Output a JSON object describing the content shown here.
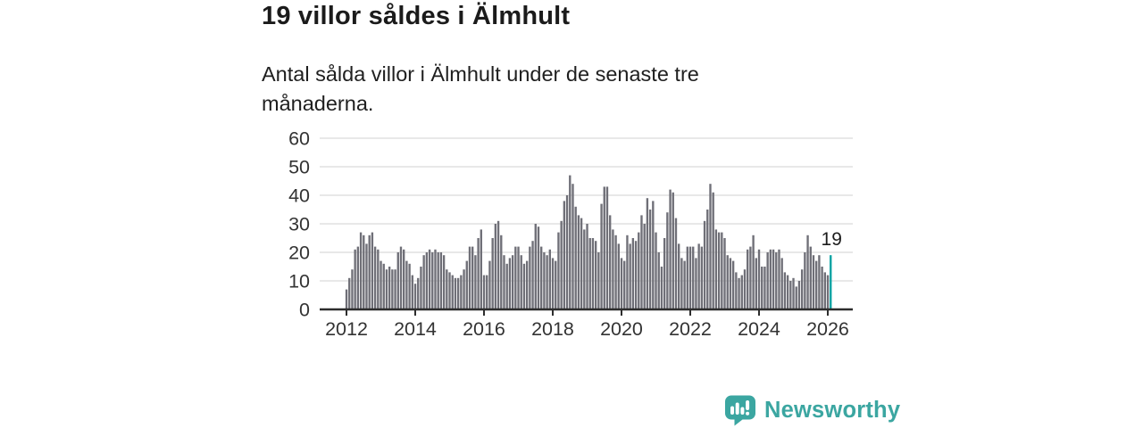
{
  "header": {
    "title": "19 villor såldes i Älmhult",
    "subtitle": "Antal sålda villor i Älmhult under de senaste tre månaderna."
  },
  "chart_data": {
    "type": "bar",
    "title": "19 villor såldes i Älmhult",
    "subtitle": "Antal sålda villor i Älmhult under de senaste tre månaderna.",
    "frequency": "monthly",
    "x_start": "2012-01",
    "x_end": "2026-02",
    "start_year": 2012,
    "values": [
      7,
      11,
      14,
      21,
      22,
      27,
      26,
      23,
      26,
      27,
      22,
      21,
      17,
      16,
      14,
      15,
      14,
      14,
      20,
      22,
      21,
      17,
      16,
      12,
      9,
      11,
      15,
      19,
      20,
      21,
      20,
      21,
      20,
      20,
      19,
      14,
      13,
      12,
      11,
      11,
      12,
      14,
      17,
      22,
      22,
      19,
      25,
      28,
      12,
      12,
      17,
      25,
      30,
      31,
      26,
      19,
      16,
      18,
      19,
      22,
      22,
      19,
      16,
      17,
      22,
      24,
      30,
      29,
      22,
      20,
      19,
      21,
      18,
      17,
      27,
      31,
      38,
      40,
      47,
      44,
      36,
      33,
      32,
      28,
      30,
      25,
      25,
      24,
      20,
      37,
      43,
      43,
      33,
      28,
      26,
      23,
      18,
      17,
      26,
      23,
      25,
      24,
      27,
      33,
      30,
      39,
      35,
      38,
      27,
      20,
      15,
      25,
      34,
      42,
      41,
      32,
      23,
      18,
      17,
      22,
      22,
      22,
      18,
      23,
      22,
      31,
      35,
      44,
      41,
      28,
      27,
      27,
      25,
      19,
      18,
      17,
      13,
      11,
      12,
      14,
      21,
      22,
      26,
      18,
      21,
      15,
      15,
      20,
      21,
      21,
      20,
      21,
      18,
      13,
      12,
      10,
      11,
      8,
      10,
      14,
      20,
      26,
      22,
      19,
      17,
      19,
      15,
      13,
      12,
      19
    ],
    "highlight": {
      "index": 169,
      "value": 19,
      "label": "19",
      "color": "#00a2a2"
    },
    "ylim": [
      0,
      60
    ],
    "yticks": [
      0,
      10,
      20,
      30,
      40,
      50,
      60
    ],
    "xtick_labels": [
      "2012",
      "2014",
      "2016",
      "2018",
      "2020",
      "2022",
      "2024",
      "2026"
    ],
    "grid": "horizontal",
    "legend": "none",
    "bar_color": "#6f6f77",
    "grid_color": "#dbdbdb",
    "axis_color": "#2d2d2d",
    "tick_label_color": "#333333",
    "annotation_color": "#1c1c1c"
  },
  "footer": {
    "brand": "Newsworthy",
    "brand_color": "#3ba6a1"
  }
}
